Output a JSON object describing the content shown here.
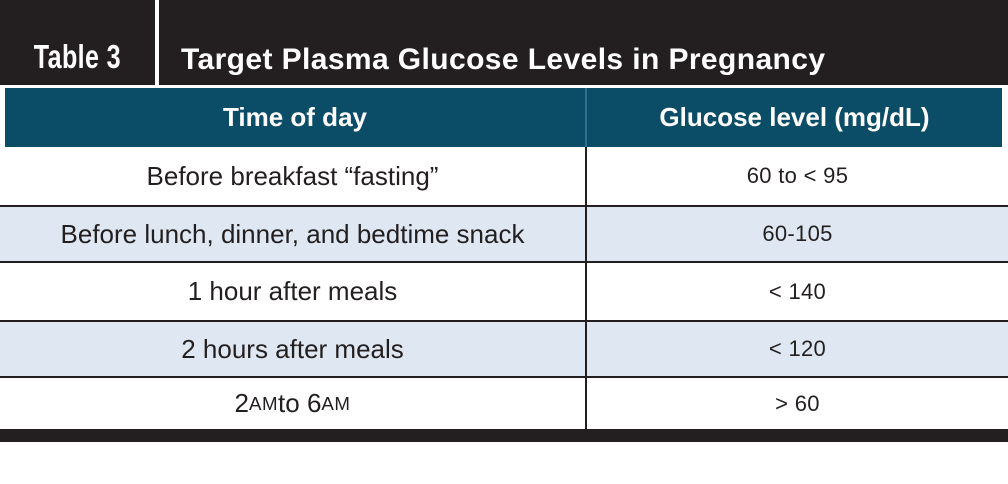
{
  "band": {
    "tag": "Table 3",
    "title": "Target Plasma Glucose Levels in Pregnancy"
  },
  "table": {
    "columns": [
      "Time of day",
      "Glucose level (mg/dL)"
    ],
    "rows": [
      {
        "time": "Before breakfast “fasting”",
        "level": "60 to < 95"
      },
      {
        "time": "Before lunch, dinner, and bedtime snack",
        "level": "60-105"
      },
      {
        "time": "1 hour after meals",
        "level": "< 140"
      },
      {
        "time": "2 hours after meals",
        "level": "< 120"
      },
      {
        "time": "2 AM to 6 AM",
        "level": "> 60"
      }
    ]
  },
  "colors": {
    "band_black": "#231f20",
    "header_teal": "#0b4c66",
    "row_alt_blue": "#dfe8f2",
    "text": "#231f20"
  }
}
